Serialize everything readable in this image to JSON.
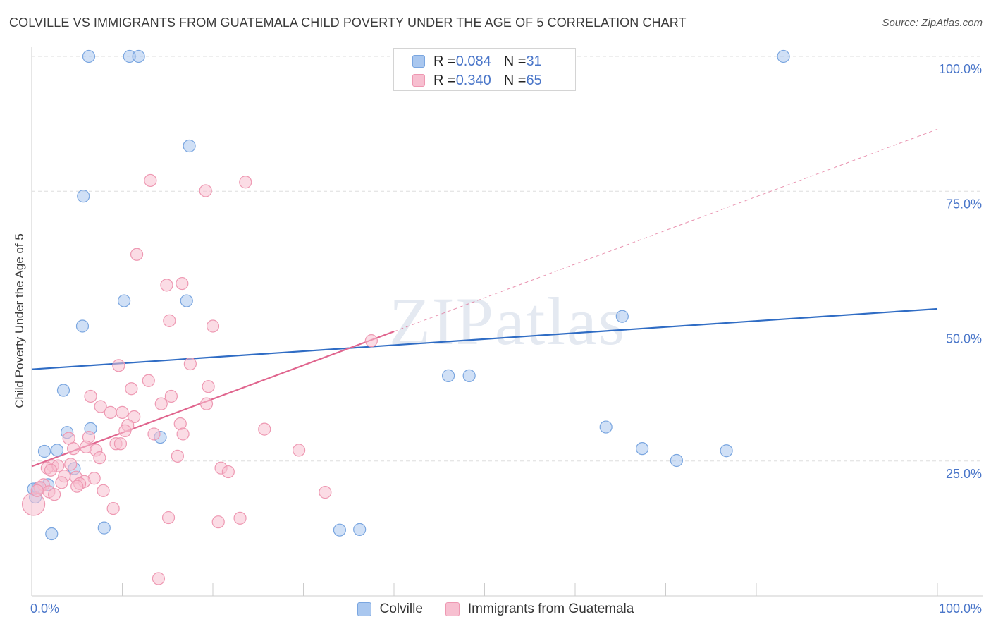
{
  "title": "COLVILLE VS IMMIGRANTS FROM GUATEMALA CHILD POVERTY UNDER THE AGE OF 5 CORRELATION CHART",
  "source": "Source: ZipAtlas.com",
  "watermark": "ZIPatlas",
  "stats": [
    {
      "r_label": "R = ",
      "r_value": "0.084",
      "n_label": "N = ",
      "n_value": "31",
      "color": "#a9c7ef",
      "border": "#7aa6e0"
    },
    {
      "r_label": "R = ",
      "r_value": "0.340",
      "n_label": "N = ",
      "n_value": "65",
      "color": "#f7bfd0",
      "border": "#ee98b2"
    }
  ],
  "legend": [
    {
      "label": "Colville",
      "color": "#a9c7ef",
      "border": "#7aa6e0"
    },
    {
      "label": "Immigrants from Guatemala",
      "color": "#f7bfd0",
      "border": "#ee98b2"
    }
  ],
  "chart_data": {
    "type": "scatter",
    "title": "COLVILLE VS IMMIGRANTS FROM GUATEMALA CHILD POVERTY UNDER THE AGE OF 5 CORRELATION CHART",
    "xlabel": "",
    "ylabel": "Child Poverty Under the Age of 5",
    "xlim": [
      0,
      100
    ],
    "ylim": [
      0,
      100
    ],
    "x_tick_labels": [
      "0.0%",
      "100.0%"
    ],
    "y_ticks": [
      25,
      50,
      75,
      100
    ],
    "y_tick_labels": [
      "25.0%",
      "50.0%",
      "75.0%",
      "100.0%"
    ],
    "grid": true,
    "legend_position": "bottom",
    "series": [
      {
        "name": "Colville",
        "color": "#a9c7ef",
        "stroke": "#7aa6e0",
        "trend_color": "#2f6cc4",
        "trend": {
          "x0": 0,
          "y0": 42.0,
          "x1": 100,
          "y1": 53.2,
          "dashed_from": null
        },
        "points": [
          [
            6.3,
            100
          ],
          [
            10.8,
            100
          ],
          [
            11.8,
            100
          ],
          [
            83.0,
            100
          ],
          [
            17.4,
            83.4
          ],
          [
            5.7,
            74.1
          ],
          [
            10.2,
            54.7
          ],
          [
            17.1,
            54.7
          ],
          [
            5.6,
            50.0
          ],
          [
            65.2,
            51.8
          ],
          [
            46.0,
            40.8
          ],
          [
            48.3,
            40.8
          ],
          [
            3.5,
            38.1
          ],
          [
            3.9,
            30.3
          ],
          [
            6.5,
            31.0
          ],
          [
            14.2,
            29.4
          ],
          [
            1.4,
            26.8
          ],
          [
            2.8,
            27.0
          ],
          [
            63.4,
            31.3
          ],
          [
            67.4,
            27.3
          ],
          [
            71.2,
            25.1
          ],
          [
            76.7,
            26.9
          ],
          [
            4.7,
            23.6
          ],
          [
            0.7,
            20.0
          ],
          [
            1.8,
            20.6
          ],
          [
            0.4,
            18.3
          ],
          [
            8.0,
            12.6
          ],
          [
            2.2,
            11.5
          ],
          [
            34.0,
            12.2
          ],
          [
            36.2,
            12.3
          ],
          [
            0.2,
            19.8
          ]
        ]
      },
      {
        "name": "Immigrants from Guatemala",
        "color": "#f7bfd0",
        "stroke": "#ee98b2",
        "trend_color": "#e0658e",
        "trend": {
          "x0": 0,
          "y0": 24.0,
          "x1": 100,
          "y1": 86.5,
          "dashed_from": 40
        },
        "points": [
          [
            13.1,
            77.0
          ],
          [
            19.2,
            75.1
          ],
          [
            23.6,
            76.7
          ],
          [
            11.6,
            63.3
          ],
          [
            14.9,
            57.6
          ],
          [
            16.6,
            57.9
          ],
          [
            15.2,
            51.0
          ],
          [
            20.0,
            50.0
          ],
          [
            37.5,
            47.3
          ],
          [
            9.6,
            42.7
          ],
          [
            17.5,
            43.0
          ],
          [
            12.9,
            39.9
          ],
          [
            11.0,
            38.4
          ],
          [
            19.5,
            38.8
          ],
          [
            6.5,
            37.0
          ],
          [
            15.4,
            37.0
          ],
          [
            14.3,
            35.6
          ],
          [
            19.3,
            35.6
          ],
          [
            7.6,
            35.1
          ],
          [
            8.7,
            34.0
          ],
          [
            10.0,
            34.0
          ],
          [
            11.3,
            33.2
          ],
          [
            16.4,
            31.9
          ],
          [
            10.6,
            31.6
          ],
          [
            10.3,
            30.6
          ],
          [
            13.5,
            30.0
          ],
          [
            16.7,
            30.0
          ],
          [
            25.7,
            30.9
          ],
          [
            6.3,
            29.4
          ],
          [
            4.1,
            29.2
          ],
          [
            6.0,
            27.6
          ],
          [
            7.1,
            27.0
          ],
          [
            4.6,
            27.3
          ],
          [
            9.3,
            28.2
          ],
          [
            9.8,
            28.2
          ],
          [
            29.5,
            27.0
          ],
          [
            7.5,
            25.6
          ],
          [
            16.1,
            25.9
          ],
          [
            2.3,
            24.1
          ],
          [
            4.3,
            24.4
          ],
          [
            1.7,
            23.7
          ],
          [
            2.9,
            24.1
          ],
          [
            20.9,
            23.7
          ],
          [
            21.7,
            23.0
          ],
          [
            3.6,
            22.2
          ],
          [
            2.1,
            23.3
          ],
          [
            4.9,
            22.0
          ],
          [
            6.9,
            21.8
          ],
          [
            3.3,
            21.0
          ],
          [
            5.8,
            21.2
          ],
          [
            5.3,
            20.8
          ],
          [
            1.3,
            20.6
          ],
          [
            0.9,
            20.1
          ],
          [
            7.9,
            19.5
          ],
          [
            1.9,
            19.3
          ],
          [
            32.4,
            19.2
          ],
          [
            5.0,
            20.3
          ],
          [
            0.2,
            17.0
          ],
          [
            9.0,
            16.2
          ],
          [
            15.1,
            14.5
          ],
          [
            20.6,
            13.7
          ],
          [
            23.0,
            14.4
          ],
          [
            14.0,
            3.2
          ],
          [
            0.6,
            19.5
          ],
          [
            2.5,
            18.8
          ]
        ]
      }
    ]
  }
}
